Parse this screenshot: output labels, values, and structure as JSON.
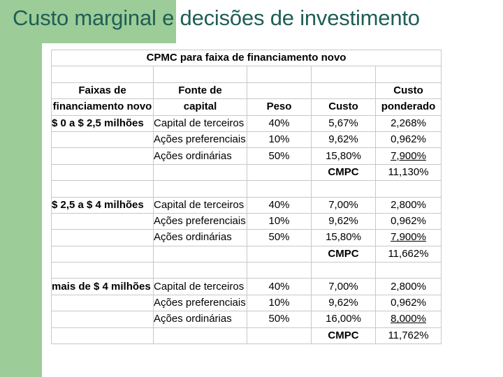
{
  "slide": {
    "title": "Custo marginal e decisões de investimento"
  },
  "table": {
    "title": "CPMC para faixa de financiamento novo",
    "headers": {
      "faixas": [
        "Faixas de",
        "financiamento novo"
      ],
      "fonte": [
        "Fonte de",
        "capital"
      ],
      "peso": "Peso",
      "custo": "Custo",
      "ponderado": [
        "Custo",
        "ponderado"
      ]
    },
    "groups": [
      {
        "range": "$ 0 a $ 2,5 milhões",
        "rows": [
          {
            "source": "Capital de terceiros",
            "peso": "40%",
            "custo": "5,67%",
            "ponderado": "2,268%"
          },
          {
            "source": "Ações preferenciais",
            "peso": "10%",
            "custo": "9,62%",
            "ponderado": "0,962%"
          },
          {
            "source": "Ações ordinárias",
            "peso": "50%",
            "custo": "15,80%",
            "ponderado": "7,900%"
          }
        ],
        "cmpc_label": "CMPC",
        "cmpc_value": "11,130%"
      },
      {
        "range": "$ 2,5 a $ 4 milhões",
        "rows": [
          {
            "source": "Capital de terceiros",
            "peso": "40%",
            "custo": "7,00%",
            "ponderado": "2,800%"
          },
          {
            "source": "Ações preferenciais",
            "peso": "10%",
            "custo": "9,62%",
            "ponderado": "0,962%"
          },
          {
            "source": "Ações ordinárias",
            "peso": "50%",
            "custo": "15,80%",
            "ponderado": "7,900%"
          }
        ],
        "cmpc_label": "CMPC",
        "cmpc_value": "11,662%"
      },
      {
        "range": "mais de $ 4 milhões",
        "rows": [
          {
            "source": "Capital de terceiros",
            "peso": "40%",
            "custo": "7,00%",
            "ponderado": "2,800%"
          },
          {
            "source": "Ações preferenciais",
            "peso": "10%",
            "custo": "9,62%",
            "ponderado": "0,962%"
          },
          {
            "source": "Ações ordinárias",
            "peso": "50%",
            "custo": "16,00%",
            "ponderado": "8,000%"
          }
        ],
        "cmpc_label": "CMPC",
        "cmpc_value": "11,762%"
      }
    ]
  }
}
